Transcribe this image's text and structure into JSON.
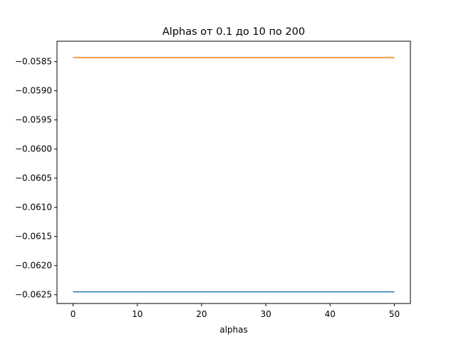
{
  "chart_data": {
    "type": "line",
    "title": "Alphas от 0.1 до 10 по 200",
    "xlabel": "alphas",
    "ylabel": "",
    "xlim": [
      -2.5,
      52.5
    ],
    "ylim": [
      -0.06265,
      -0.05815
    ],
    "x_ticks": [
      0,
      10,
      20,
      30,
      40,
      50
    ],
    "x_tick_labels": [
      "0",
      "10",
      "20",
      "30",
      "40",
      "50"
    ],
    "y_ticks": [
      -0.0585,
      -0.059,
      -0.0595,
      -0.06,
      -0.0605,
      -0.061,
      -0.0615,
      -0.062,
      -0.0625
    ],
    "y_tick_labels": [
      "−0.0585",
      "−0.0590",
      "−0.0595",
      "−0.0600",
      "−0.0605",
      "−0.0610",
      "−0.0615",
      "−0.0620",
      "−0.0625"
    ],
    "grid": false,
    "series": [
      {
        "color": "#1f77b4",
        "x": [
          0,
          50
        ],
        "y": [
          -0.06245,
          -0.06245
        ]
      },
      {
        "color": "#ff7f0e",
        "x": [
          0,
          50
        ],
        "y": [
          -0.05843,
          -0.05843
        ]
      }
    ]
  }
}
